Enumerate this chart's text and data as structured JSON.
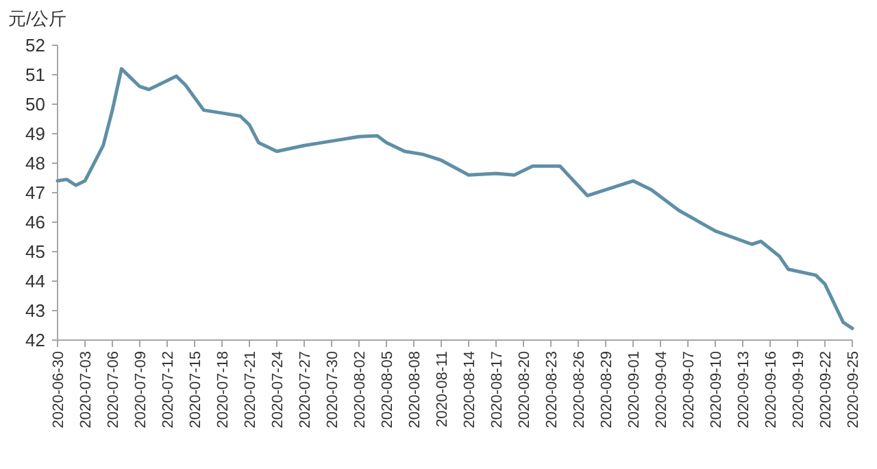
{
  "chart_data": {
    "type": "line",
    "ylabel": "元/公斤",
    "x": [
      "2020-06-30",
      "2020-07-01",
      "2020-07-02",
      "2020-07-03",
      "2020-07-05",
      "2020-07-06",
      "2020-07-07",
      "2020-07-09",
      "2020-07-10",
      "2020-07-13",
      "2020-07-14",
      "2020-07-16",
      "2020-07-18",
      "2020-07-20",
      "2020-07-21",
      "2020-07-22",
      "2020-07-24",
      "2020-07-27",
      "2020-07-29",
      "2020-07-31",
      "2020-08-02",
      "2020-08-04",
      "2020-08-05",
      "2020-08-07",
      "2020-08-09",
      "2020-08-11",
      "2020-08-14",
      "2020-08-17",
      "2020-08-19",
      "2020-08-21",
      "2020-08-24",
      "2020-08-27",
      "2020-09-01",
      "2020-09-03",
      "2020-09-06",
      "2020-09-10",
      "2020-09-14",
      "2020-09-15",
      "2020-09-17",
      "2020-09-18",
      "2020-09-21",
      "2020-09-22",
      "2020-09-24",
      "2020-09-25"
    ],
    "series": [
      {
        "color": "#5f8fa6",
        "values": [
          47.4,
          47.45,
          47.25,
          47.4,
          48.6,
          49.8,
          51.2,
          50.6,
          50.5,
          50.95,
          50.65,
          49.8,
          49.7,
          49.6,
          49.3,
          48.7,
          48.4,
          48.6,
          48.7,
          48.8,
          48.9,
          48.93,
          48.7,
          48.4,
          48.3,
          48.1,
          47.6,
          47.65,
          47.6,
          47.9,
          47.9,
          46.9,
          47.4,
          47.1,
          46.4,
          45.7,
          45.25,
          45.35,
          44.85,
          44.4,
          44.2,
          43.9,
          42.6,
          42.4
        ]
      }
    ],
    "xlim": [
      "2020-06-30",
      "2020-09-25"
    ],
    "xticks": [
      "2020-06-30",
      "2020-07-03",
      "2020-07-06",
      "2020-07-09",
      "2020-07-12",
      "2020-07-15",
      "2020-07-18",
      "2020-07-21",
      "2020-07-24",
      "2020-07-27",
      "2020-07-30",
      "2020-08-02",
      "2020-08-05",
      "2020-08-08",
      "2020-08-11",
      "2020-08-14",
      "2020-08-17",
      "2020-08-20",
      "2020-08-23",
      "2020-08-26",
      "2020-08-29",
      "2020-09-01",
      "2020-09-04",
      "2020-09-07",
      "2020-09-10",
      "2020-09-13",
      "2020-09-16",
      "2020-09-19",
      "2020-09-22",
      "2020-09-25"
    ],
    "ylim": [
      42,
      52
    ],
    "yticks": [
      42,
      43,
      44,
      45,
      46,
      47,
      48,
      49,
      50,
      51,
      52
    ],
    "marker": "none",
    "line_style": "solid"
  }
}
